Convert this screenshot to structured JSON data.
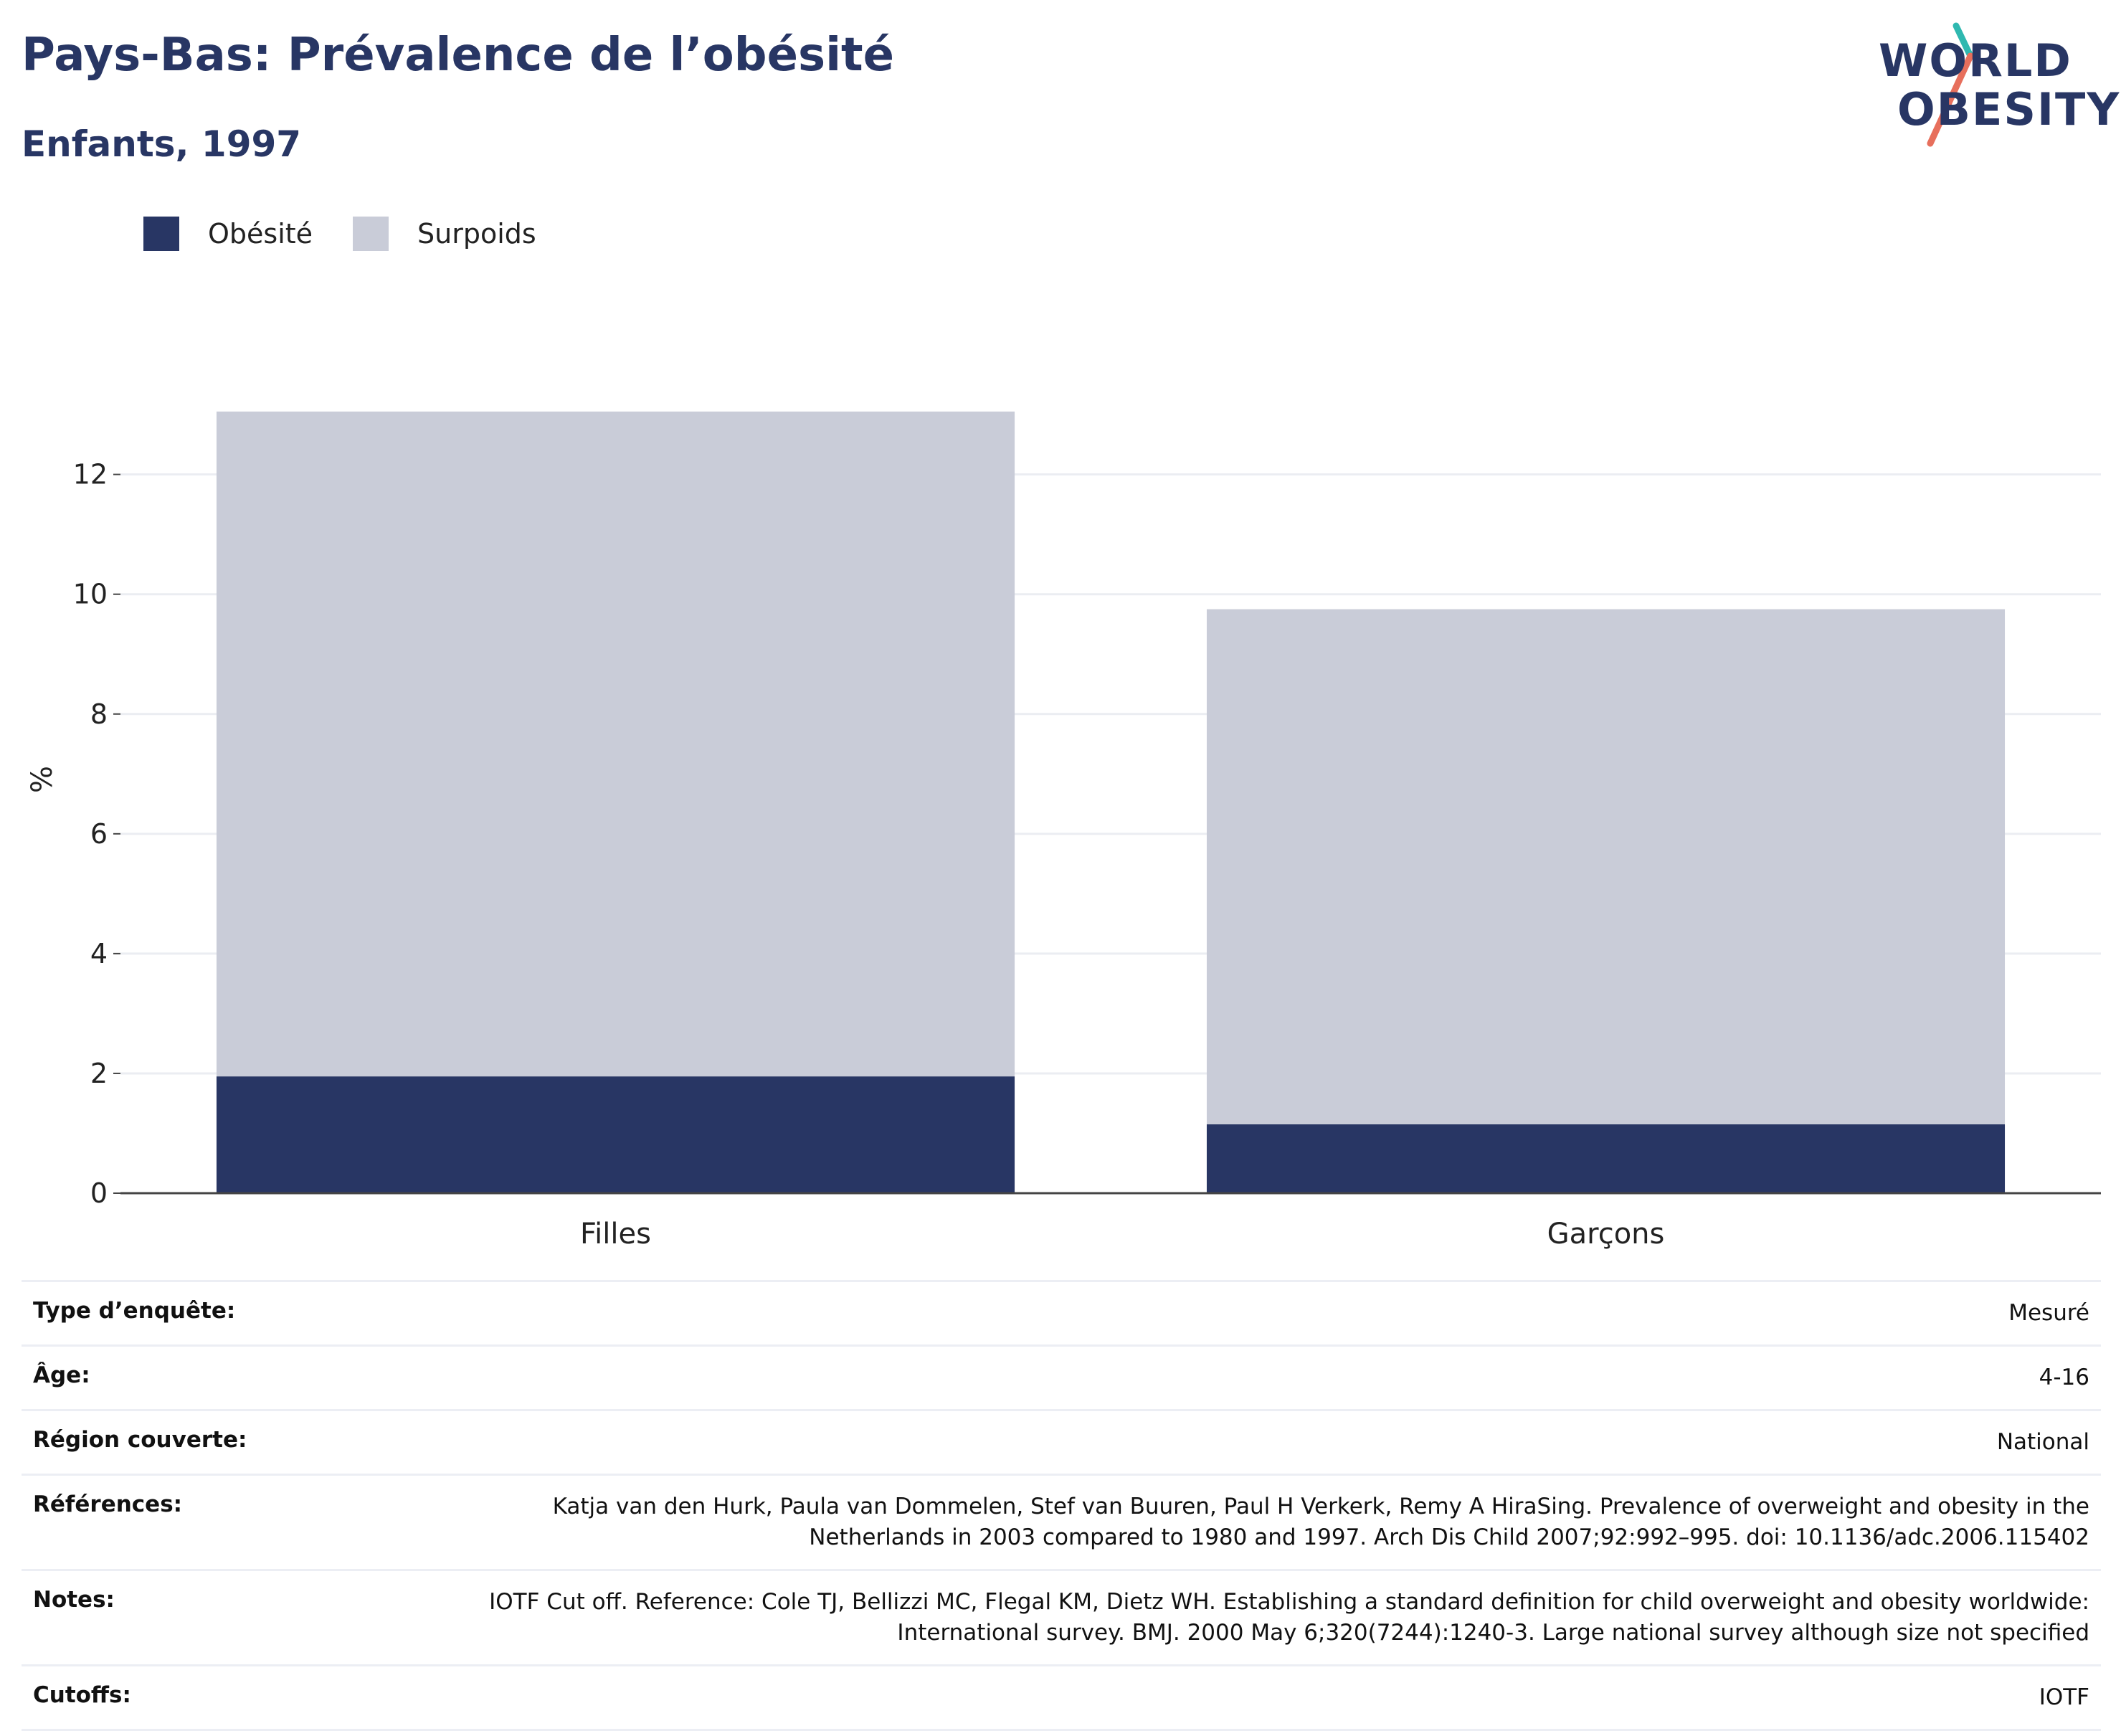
{
  "header": {
    "title": "Pays-Bas: Prévalence de l’obésité",
    "subtitle": "Enfants, 1997"
  },
  "logo": {
    "line1": "WORLD",
    "line2": "OBESITY",
    "accent_teal": "#2fb8b0",
    "accent_coral": "#e76f5c"
  },
  "legend": {
    "items": [
      {
        "label": "Obésité",
        "color": "#283664"
      },
      {
        "label": "Surpoids",
        "color": "#c9ccd8"
      }
    ]
  },
  "chart_data": {
    "type": "bar",
    "stacked": true,
    "categories": [
      "Filles",
      "Garçons"
    ],
    "series": [
      {
        "name": "Obésité",
        "values": [
          1.95,
          1.15
        ],
        "color": "#283664"
      },
      {
        "name": "Surpoids",
        "values": [
          11.1,
          8.6
        ],
        "color": "#c9ccd8"
      }
    ],
    "ylabel": "%",
    "yticks": [
      "0",
      "2",
      "4",
      "6",
      "8",
      "10",
      "12"
    ],
    "ylim": [
      0,
      13.6
    ],
    "grid": true,
    "legend_position": "top-left"
  },
  "metadata": {
    "rows": [
      {
        "key": "Type d’enquête:",
        "value": "Mesuré"
      },
      {
        "key": "Âge:",
        "value": "4-16"
      },
      {
        "key": "Région couverte:",
        "value": "National"
      },
      {
        "key": "Références:",
        "value": "Katja van den Hurk, Paula van Dommelen, Stef van Buuren, Paul H Verkerk, Remy A HiraSing. Prevalence of overweight and obesity in the Netherlands in 2003 compared to 1980 and 1997. Arch Dis Child 2007;92:992–995. doi: 10.1136/adc.2006.115402"
      },
      {
        "key": "Notes:",
        "value": "IOTF Cut off. Reference: Cole TJ, Bellizzi MC, Flegal KM, Dietz WH. Establishing a standard definition for child overweight and obesity worldwide: International survey. BMJ. 2000 May 6;320(7244):1240-3. Large national survey although size not specified"
      },
      {
        "key": "Cutoffs:",
        "value": "IOTF"
      }
    ]
  }
}
